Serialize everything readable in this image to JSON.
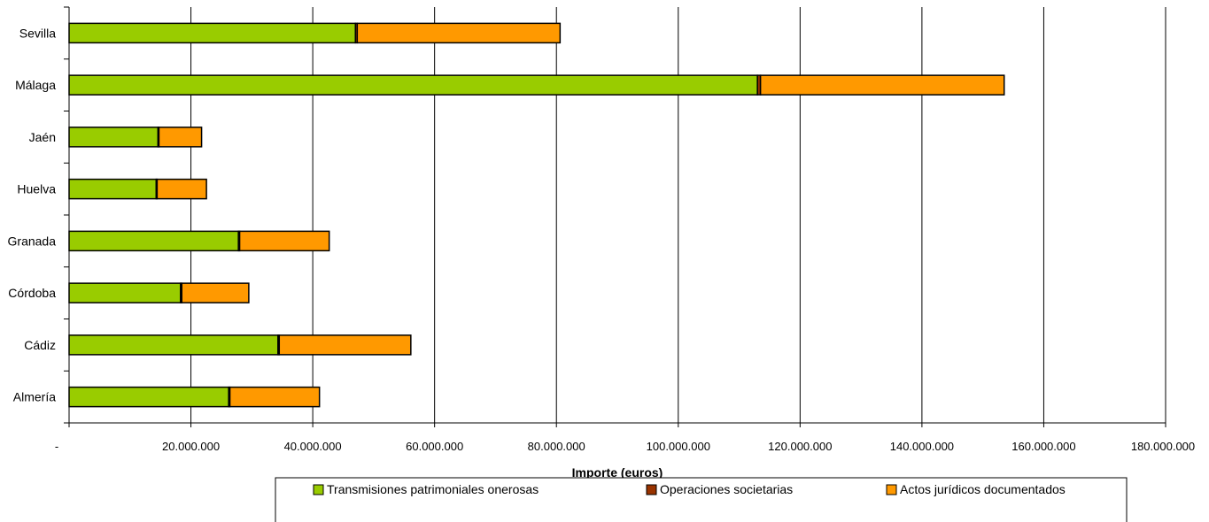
{
  "chart_data": {
    "type": "bar",
    "orientation": "horizontal",
    "stacked": true,
    "categories": [
      "Almería",
      "Cádiz",
      "Córdoba",
      "Granada",
      "Huelva",
      "Jaén",
      "Málaga",
      "Sevilla"
    ],
    "series": [
      {
        "name": "Transmisiones patrimoniales onerosas",
        "color": "#99CC00",
        "values": [
          26200000,
          34300000,
          18300000,
          27800000,
          14300000,
          14600000,
          113000000,
          47000000
        ]
      },
      {
        "name": "Operaciones societarias",
        "color": "#993300",
        "values": [
          200000,
          200000,
          200000,
          200000,
          150000,
          150000,
          500000,
          300000
        ]
      },
      {
        "name": "Actos jurídicos documentados",
        "color": "#FF9900",
        "values": [
          14700000,
          21600000,
          11000000,
          14700000,
          8100000,
          7000000,
          40000000,
          33300000
        ]
      }
    ],
    "xlim": [
      0,
      180000000
    ],
    "xticks": [
      0,
      20000000,
      40000000,
      60000000,
      80000000,
      100000000,
      120000000,
      140000000,
      160000000,
      180000000
    ],
    "xtick_labels": [
      "-",
      "20.000.000",
      "40.000.000",
      "60.000.000",
      "80.000.000",
      "100.000.000",
      "120.000.000",
      "140.000.000",
      "160.000.000",
      "180.000.000"
    ],
    "xlabel": "Importe (euros)",
    "ylabel": "",
    "title": "",
    "grid": "vertical",
    "legend_position": "bottom"
  }
}
